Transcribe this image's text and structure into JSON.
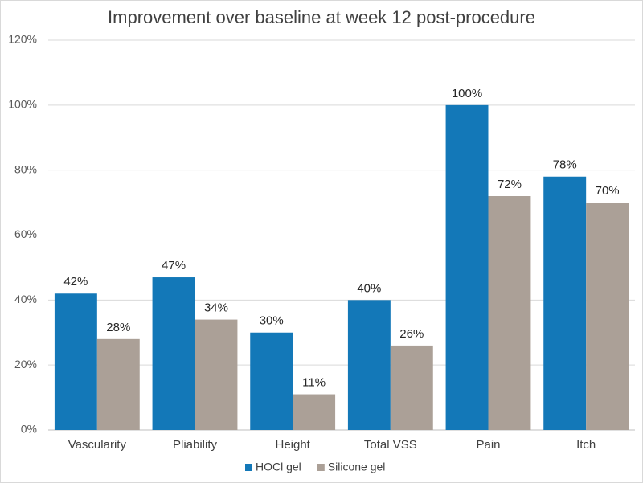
{
  "chart_data": {
    "type": "bar",
    "title": "Improvement over baseline at week 12 post-procedure",
    "categories": [
      "Vascularity",
      "Pliability",
      "Height",
      "Total VSS",
      "Pain",
      "Itch"
    ],
    "series": [
      {
        "name": "HOCl gel",
        "color": "#1378b8",
        "values": [
          42,
          47,
          30,
          40,
          100,
          78
        ],
        "value_labels": [
          "42%",
          "47%",
          "30%",
          "40%",
          "100%",
          "78%"
        ]
      },
      {
        "name": "Silicone gel",
        "color": "#aba097",
        "values": [
          28,
          34,
          11,
          26,
          72,
          70
        ],
        "value_labels": [
          "28%",
          "34%",
          "11%",
          "26%",
          "72%",
          "70%"
        ]
      }
    ],
    "ylim": [
      0,
      120
    ],
    "yticks": [
      {
        "value": 0,
        "label": "0%"
      },
      {
        "value": 20,
        "label": "20%"
      },
      {
        "value": 40,
        "label": "40%"
      },
      {
        "value": 60,
        "label": "60%"
      },
      {
        "value": 80,
        "label": "80%"
      },
      {
        "value": 100,
        "label": "100%"
      },
      {
        "value": 120,
        "label": "120%"
      }
    ],
    "grid": true,
    "legend": "bottom"
  }
}
